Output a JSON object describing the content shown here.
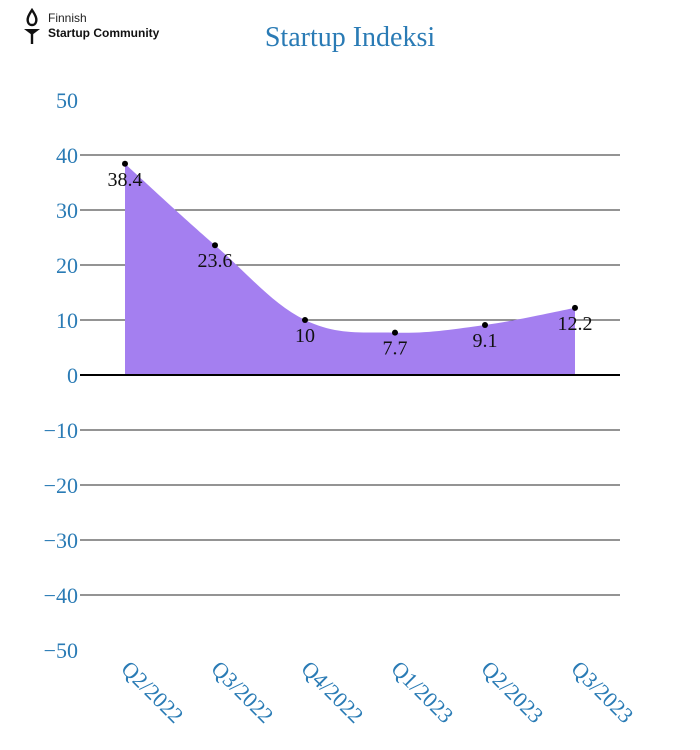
{
  "logo": {
    "line1": "Finnish",
    "line2": "Startup Community"
  },
  "chart_data": {
    "type": "area",
    "title": "Startup Indeksi",
    "xlabel": "",
    "ylabel": "",
    "categories": [
      "Q2/2022",
      "Q3/2022",
      "Q4/2022",
      "Q1/2023",
      "Q2/2023",
      "Q3/2023"
    ],
    "values": [
      38.4,
      23.6,
      10,
      7.7,
      9.1,
      12.2
    ],
    "value_labels": [
      "38.4",
      "23.6",
      "10",
      "7.7",
      "9.1",
      "12.2"
    ],
    "ylim": [
      -50,
      50
    ],
    "yticks": [
      50,
      40,
      30,
      20,
      10,
      0,
      -10,
      -20,
      -30,
      -40,
      -50
    ],
    "ytick_labels": [
      "50",
      "40",
      "30",
      "20",
      "10",
      "0",
      "−10",
      "−20",
      "−30",
      "−40",
      "−50"
    ],
    "grid": true,
    "fill_color": "#a47ff0",
    "text_color": "#2a7bb5"
  }
}
